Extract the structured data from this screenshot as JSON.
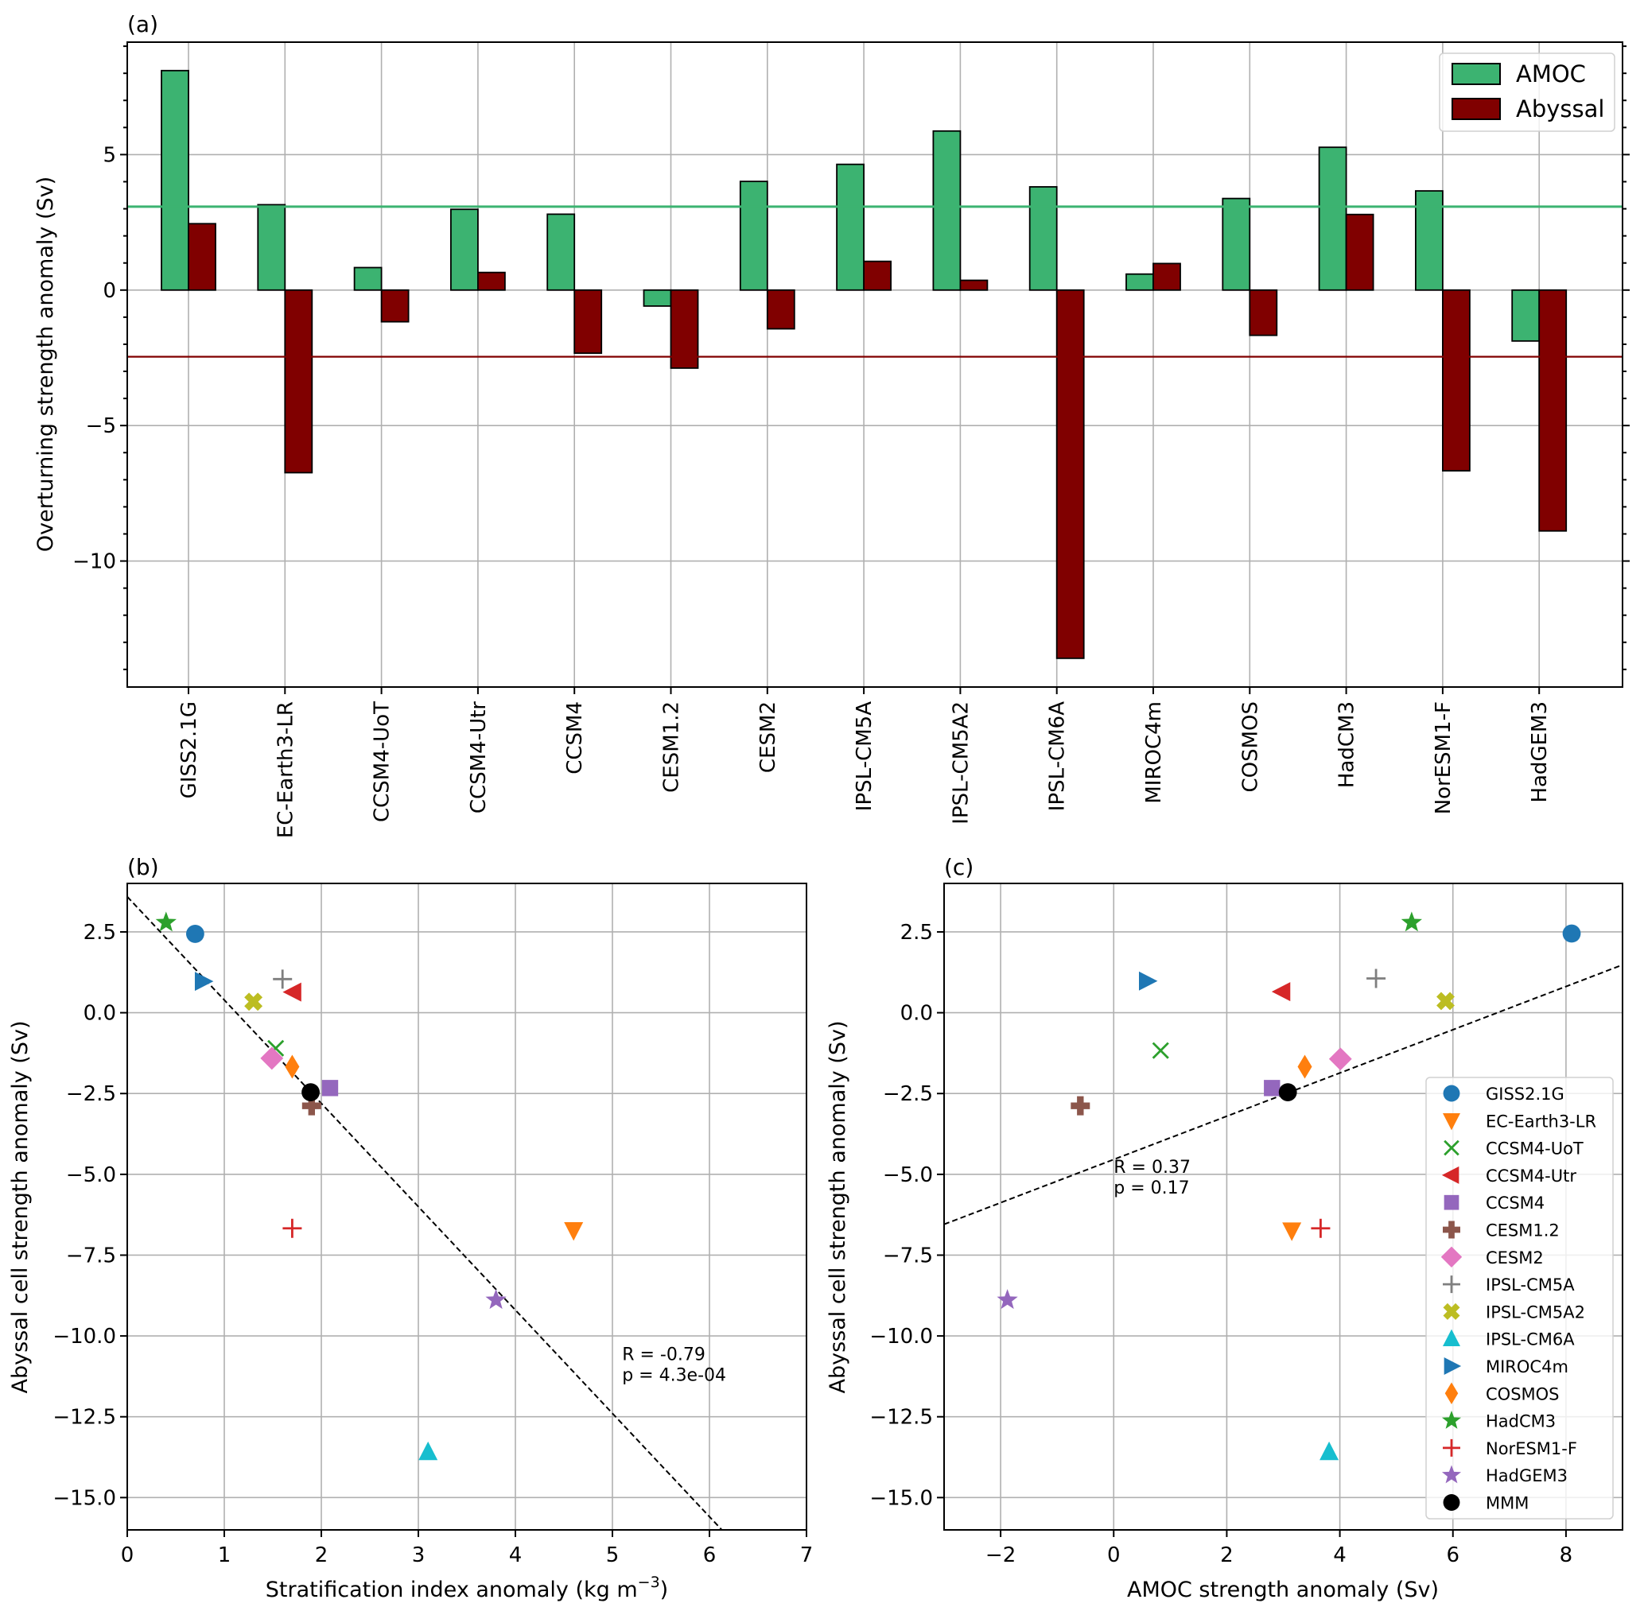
{
  "models": [
    "GISS2.1G",
    "EC-Earth3-LR",
    "CCSM4-UoT",
    "CCSM4-Utr",
    "CCSM4",
    "CESM1.2",
    "CESM2",
    "IPSL-CM5A",
    "IPSL-CM5A2",
    "IPSL-CM6A",
    "MIROC4m",
    "COSMOS",
    "HadCM3",
    "NorESM1-F",
    "HadGEM3"
  ],
  "chart_data": [
    {
      "panel": "(a)",
      "type": "bar",
      "title": "",
      "xlabel": "",
      "ylabel": "Overturning strength anomaly (Sv)",
      "ylim": [
        -14.65,
        9.15
      ],
      "yticks": [
        5,
        0,
        -5,
        -10
      ],
      "ytick_labels": [
        "5",
        "0",
        "−5",
        "−10"
      ],
      "minor_ticks_step": 1,
      "grid": true,
      "legend_placement": "top-right",
      "categories": [
        "GISS2.1G",
        "EC-Earth3-LR",
        "CCSM4-UoT",
        "CCSM4-Utr",
        "CCSM4",
        "CESM1.2",
        "CESM2",
        "IPSL-CM5A",
        "IPSL-CM5A2",
        "IPSL-CM6A",
        "MIROC4m",
        "COSMOS",
        "HadCM3",
        "NorESM1-F",
        "HadGEM3"
      ],
      "series": [
        {
          "name": "AMOC",
          "color": "#3cb371",
          "values": [
            8.1,
            3.15,
            0.83,
            2.98,
            2.8,
            -0.59,
            4.01,
            4.64,
            5.87,
            3.81,
            0.59,
            3.38,
            5.27,
            3.66,
            -1.88
          ]
        },
        {
          "name": "Abyssal",
          "color": "#800000",
          "values": [
            2.45,
            -6.74,
            -1.17,
            0.65,
            -2.33,
            -2.88,
            -1.43,
            1.06,
            0.36,
            -13.59,
            0.98,
            -1.67,
            2.79,
            -6.67,
            -8.89
          ]
        }
      ],
      "reference_lines": [
        {
          "name": "AMOC multi-model mean",
          "value": 3.08,
          "color": "#3cb371"
        },
        {
          "name": "Abyssal multi-model mean",
          "value": -2.46,
          "color": "#800000"
        }
      ]
    },
    {
      "panel": "(b)",
      "type": "scatter",
      "xlabel": "Stratification index anomaly (kg m",
      "xlabel_sup": "−3",
      "xlabel_end": ")",
      "ylabel": "Abyssal cell strength anomaly (Sv)",
      "xlim": [
        0,
        7
      ],
      "ylim": [
        -16,
        4
      ],
      "xticks": [
        0,
        1,
        2,
        3,
        4,
        5,
        6,
        7
      ],
      "xtick_labels": [
        "0",
        "1",
        "2",
        "3",
        "4",
        "5",
        "6",
        "7"
      ],
      "yticks": [
        2.5,
        0,
        -2.5,
        -5,
        -7.5,
        -10,
        -12.5,
        -15
      ],
      "ytick_labels": [
        "2.5",
        "0.0",
        "−2.5",
        "−5.0",
        "−7.5",
        "−10.0",
        "−12.5",
        "−15.0"
      ],
      "grid": true,
      "points": [
        {
          "model": "GISS2.1G",
          "x": 0.7,
          "y": 2.44
        },
        {
          "model": "EC-Earth3-LR",
          "x": 4.6,
          "y": -6.73
        },
        {
          "model": "CCSM4-UoT",
          "x": 1.53,
          "y": -1.1
        },
        {
          "model": "CCSM4-Utr",
          "x": 1.71,
          "y": 0.64
        },
        {
          "model": "CCSM4",
          "x": 2.09,
          "y": -2.33
        },
        {
          "model": "CESM1.2",
          "x": 1.9,
          "y": -2.88
        },
        {
          "model": "CESM2",
          "x": 1.49,
          "y": -1.41
        },
        {
          "model": "IPSL-CM5A",
          "x": 1.6,
          "y": 1.04
        },
        {
          "model": "IPSL-CM5A2",
          "x": 1.3,
          "y": 0.34
        },
        {
          "model": "IPSL-CM6A",
          "x": 3.1,
          "y": -13.59
        },
        {
          "model": "MIROC4m",
          "x": 0.78,
          "y": 0.97
        },
        {
          "model": "COSMOS",
          "x": 1.7,
          "y": -1.67
        },
        {
          "model": "HadCM3",
          "x": 0.4,
          "y": 2.79
        },
        {
          "model": "NorESM1-F",
          "x": 1.7,
          "y": -6.67
        },
        {
          "model": "HadGEM3",
          "x": 3.8,
          "y": -8.89
        },
        {
          "model": "MMM",
          "x": 1.89,
          "y": -2.46
        }
      ],
      "regression": {
        "intercept": 3.59,
        "slope": -3.197
      },
      "stats": {
        "R": "R = -0.79",
        "p": "p = 4.3e-04",
        "anchor_x": 5.1,
        "anchor_y": -10.9
      }
    },
    {
      "panel": "(c)",
      "type": "scatter",
      "xlabel": "AMOC strength anomaly (Sv)",
      "ylabel": "Abyssal cell strength anomaly (Sv)",
      "xlim": [
        -3,
        9
      ],
      "ylim": [
        -16,
        4
      ],
      "xticks": [
        -2,
        0,
        2,
        4,
        6,
        8
      ],
      "xtick_labels": [
        "−2",
        "0",
        "2",
        "4",
        "6",
        "8"
      ],
      "yticks": [
        2.5,
        0,
        -2.5,
        -5,
        -7.5,
        -10,
        -12.5,
        -15
      ],
      "ytick_labels": [
        "2.5",
        "0.0",
        "−2.5",
        "−5.0",
        "−7.5",
        "−10.0",
        "−12.5",
        "−15.0"
      ],
      "grid": true,
      "legend_placement": "lower-right",
      "points": [
        {
          "model": "GISS2.1G",
          "x": 8.1,
          "y": 2.45
        },
        {
          "model": "EC-Earth3-LR",
          "x": 3.15,
          "y": -6.74
        },
        {
          "model": "CCSM4-UoT",
          "x": 0.83,
          "y": -1.17
        },
        {
          "model": "CCSM4-Utr",
          "x": 2.98,
          "y": 0.65
        },
        {
          "model": "CCSM4",
          "x": 2.8,
          "y": -2.33
        },
        {
          "model": "CESM1.2",
          "x": -0.59,
          "y": -2.88
        },
        {
          "model": "CESM2",
          "x": 4.01,
          "y": -1.43
        },
        {
          "model": "IPSL-CM5A",
          "x": 4.64,
          "y": 1.06
        },
        {
          "model": "IPSL-CM5A2",
          "x": 5.87,
          "y": 0.36
        },
        {
          "model": "IPSL-CM6A",
          "x": 3.81,
          "y": -13.59
        },
        {
          "model": "MIROC4m",
          "x": 0.59,
          "y": 0.98
        },
        {
          "model": "COSMOS",
          "x": 3.38,
          "y": -1.67
        },
        {
          "model": "HadCM3",
          "x": 5.27,
          "y": 2.79
        },
        {
          "model": "NorESM1-F",
          "x": 3.66,
          "y": -6.67
        },
        {
          "model": "HadGEM3",
          "x": -1.88,
          "y": -8.89
        },
        {
          "model": "MMM",
          "x": 3.08,
          "y": -2.46
        }
      ],
      "regression": {
        "intercept": -4.54,
        "slope": 0.669
      },
      "stats": {
        "R": "R = 0.37",
        "p": "p = 0.17",
        "anchor_x": 0.0,
        "anchor_y": -5.1
      }
    }
  ],
  "markers": {
    "GISS2.1G": {
      "shape": "circle",
      "color": "#1f77b4"
    },
    "EC-Earth3-LR": {
      "shape": "triangle-down",
      "color": "#ff7f0e"
    },
    "CCSM4-UoT": {
      "shape": "x",
      "color": "#2ca02c"
    },
    "CCSM4-Utr": {
      "shape": "triangle-left",
      "color": "#d62728"
    },
    "CCSM4": {
      "shape": "square",
      "color": "#9467bd"
    },
    "CESM1.2": {
      "shape": "plus-filled",
      "color": "#8c564b"
    },
    "CESM2": {
      "shape": "diamond",
      "color": "#e377c2"
    },
    "IPSL-CM5A": {
      "shape": "plus",
      "color": "#7f7f7f"
    },
    "IPSL-CM5A2": {
      "shape": "x-filled",
      "color": "#bcbd22"
    },
    "IPSL-CM6A": {
      "shape": "triangle-up",
      "color": "#17becf"
    },
    "MIROC4m": {
      "shape": "triangle-right",
      "color": "#1f77b4"
    },
    "COSMOS": {
      "shape": "thin-diamond",
      "color": "#ff7f0e"
    },
    "HadCM3": {
      "shape": "star",
      "color": "#2ca02c"
    },
    "NorESM1-F": {
      "shape": "plus",
      "color": "#d62728"
    },
    "HadGEM3": {
      "shape": "star",
      "color": "#9467bd"
    },
    "MMM": {
      "shape": "circle",
      "color": "#000000"
    }
  },
  "legend_c": [
    "GISS2.1G",
    "EC-Earth3-LR",
    "CCSM4-UoT",
    "CCSM4-Utr",
    "CCSM4",
    "CESM1.2",
    "CESM2",
    "IPSL-CM5A",
    "IPSL-CM5A2",
    "IPSL-CM6A",
    "MIROC4m",
    "COSMOS",
    "HadCM3",
    "NorESM1-F",
    "HadGEM3",
    "MMM"
  ]
}
